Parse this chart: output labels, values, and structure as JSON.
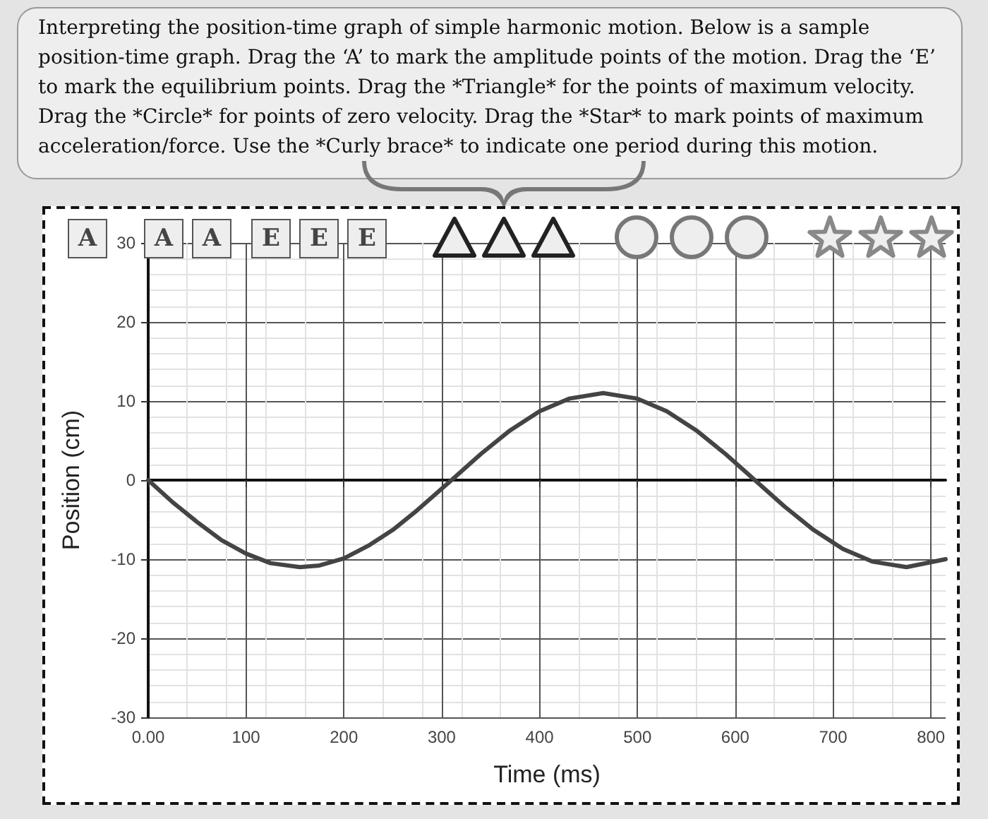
{
  "chart_data": {
    "type": "line",
    "xlabel": "Time (ms)",
    "ylabel": "Position (cm)",
    "annotations": [
      "Interpreting the position-time graph of simple harmonic motion. Below is a sample position-time graph. Drag the ‘A’ to mark the amplitude points of the motion. Drag the ‘E’ to mark the equilibrium points. Drag the *Triangle* for the points of maximum velocity. Drag the *Circle* for points of zero velocity. Drag the *Star* to mark points of maximum acceleration/force. Use the *Curly brace* to indicate one period during this motion.",
      "A",
      "A",
      "A",
      "E",
      "E",
      "E"
    ],
    "x": [
      0,
      25,
      50,
      75,
      100,
      125,
      155,
      175,
      200,
      225,
      250,
      275,
      310,
      340,
      370,
      400,
      430,
      465,
      500,
      530,
      560,
      590,
      620,
      650,
      680,
      710,
      740,
      775,
      815
    ],
    "series": [
      {
        "color": "#444444",
        "values": [
          0,
          -2.8,
          -5.3,
          -7.6,
          -9.3,
          -10.5,
          -11,
          -10.8,
          -9.9,
          -8.3,
          -6.3,
          -3.8,
          0,
          3.3,
          6.3,
          8.7,
          10.3,
          11,
          10.3,
          8.7,
          6.3,
          3.3,
          0,
          -3.3,
          -6.3,
          -8.7,
          -10.3,
          -11,
          -10
        ]
      }
    ],
    "xlim": [
      0,
      815
    ],
    "xticks": [
      {
        "value": 0,
        "label": "0.00"
      },
      100,
      200,
      300,
      400,
      500,
      600,
      700,
      800
    ],
    "ylim": [
      -30,
      30
    ],
    "yticks": [
      -30,
      -20,
      -10,
      0,
      10,
      20,
      30
    ],
    "grid": true,
    "marker": "none",
    "line_style": "solid"
  }
}
